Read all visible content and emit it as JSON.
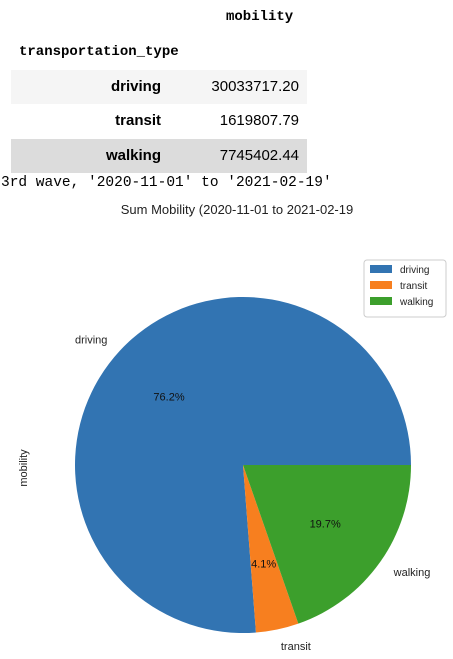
{
  "dataframe": {
    "column_header": "mobility",
    "index_name": "transportation_type",
    "rows": [
      {
        "index": "driving",
        "value": "30033717.20"
      },
      {
        "index": "transit",
        "value": "1619807.79"
      },
      {
        "index": "walking",
        "value": "7745402.44"
      }
    ]
  },
  "print_output": "3rd wave, '2020-11-01' to '2021-02-19'",
  "chart_data": {
    "type": "pie",
    "title": "Sum Mobility (2020-11-01 to 2021-02-19",
    "ylabel": "mobility",
    "categories": [
      "driving",
      "transit",
      "walking"
    ],
    "values": [
      30033717.2,
      1619807.79,
      7745402.44
    ],
    "percent_labels": [
      "76.2%",
      "4.1%",
      "19.7%"
    ],
    "colors": [
      "#3274b2",
      "#f77f1f",
      "#3c9f2c"
    ],
    "legend": {
      "position": "top-right",
      "entries": [
        "driving",
        "transit",
        "walking"
      ]
    }
  }
}
